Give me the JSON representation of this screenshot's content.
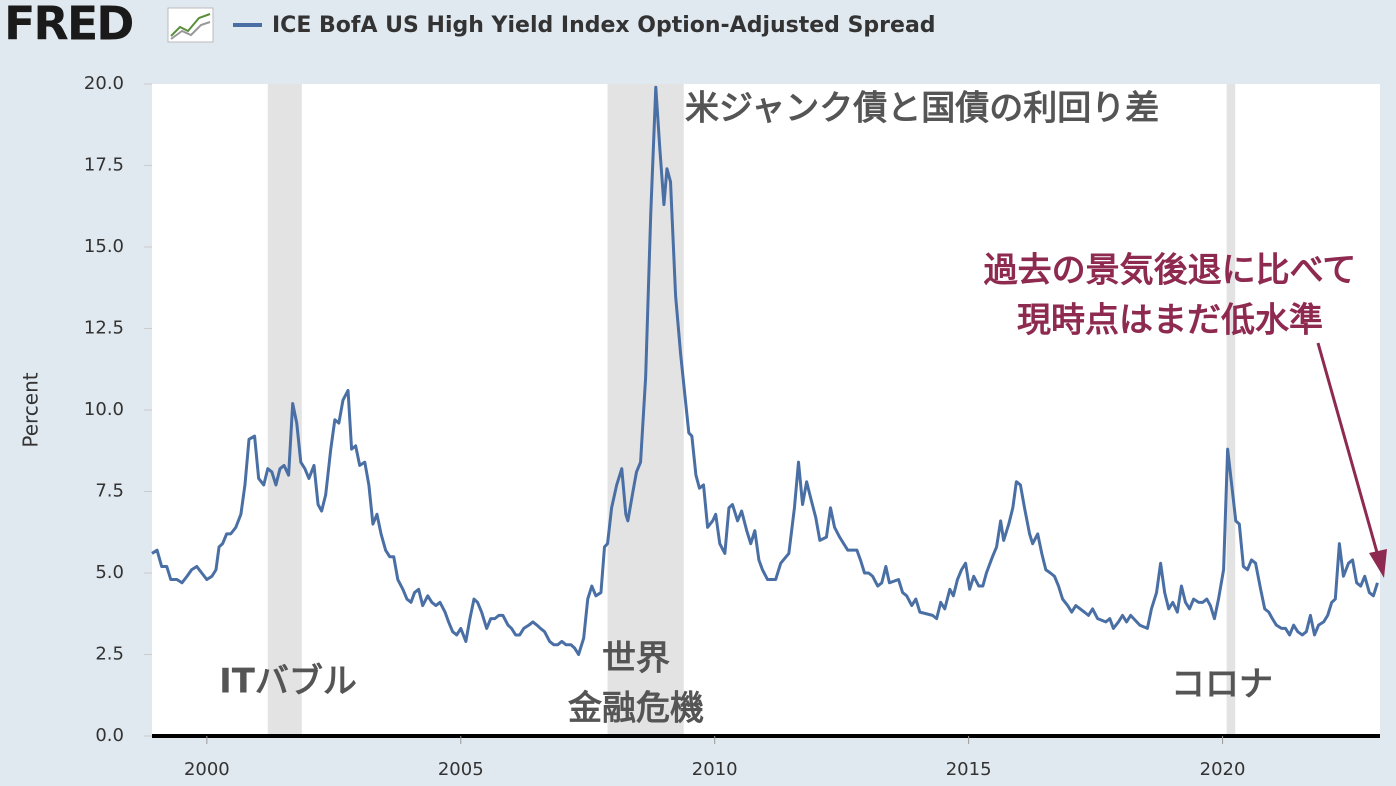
{
  "logo": "FRED",
  "chart_data": {
    "type": "line",
    "title": "ICE BofA US High Yield Index Option-Adjusted Spread",
    "y_label": "Percent",
    "xlim": [
      1998.92,
      2023.1
    ],
    "xticks": [
      2000,
      2005,
      2010,
      2015,
      2020
    ],
    "ylim": [
      0,
      20
    ],
    "yticks": [
      {
        "value": 0,
        "label": "0.0"
      },
      2.5,
      {
        "value": 5,
        "label": "5.0"
      },
      7.5,
      {
        "value": 10,
        "label": "10.0"
      },
      12.5,
      {
        "value": 15,
        "label": "15.0"
      },
      17.5,
      {
        "value": 20,
        "label": "20.0"
      }
    ],
    "grid": false,
    "recession_color": "#e3e3e3",
    "recessions": [
      [
        2001.2,
        2001.87
      ],
      [
        2007.89,
        2009.39
      ],
      [
        2020.08,
        2020.25
      ]
    ],
    "annotations": [
      {
        "text": "米ジャンク債と国債の利回り差"
      },
      {
        "text": "ITバブル"
      },
      {
        "lines": [
          "世界",
          "金融危機"
        ]
      },
      {
        "text": "コロナ"
      },
      {
        "lines": [
          "過去の景気後退に比べて",
          "現時点はまだ低水準"
        ],
        "color": "#8e2a50"
      }
    ],
    "series": [
      {
        "name": "ICE BofA US High Yield Index Option-Adjusted Spread",
        "color": "#4a6fa5",
        "x": [
          1998.92,
          1999.02,
          1999.11,
          1999.21,
          1999.29,
          1999.41,
          1999.51,
          1999.61,
          1999.7,
          1999.8,
          1999.9,
          2000.0,
          2000.1,
          2000.18,
          2000.24,
          2000.31,
          2000.39,
          2000.47,
          2000.57,
          2000.67,
          2000.75,
          2000.83,
          2000.94,
          2001.02,
          2001.12,
          2001.2,
          2001.28,
          2001.36,
          2001.44,
          2001.52,
          2001.61,
          2001.69,
          2001.77,
          2001.85,
          2001.93,
          2002.01,
          2002.11,
          2002.19,
          2002.26,
          2002.34,
          2002.44,
          2002.52,
          2002.6,
          2002.68,
          2002.78,
          2002.85,
          2002.93,
          2003.01,
          2003.11,
          2003.19,
          2003.27,
          2003.35,
          2003.43,
          2003.52,
          2003.6,
          2003.68,
          2003.76,
          2003.86,
          2003.94,
          2004.02,
          2004.09,
          2004.17,
          2004.25,
          2004.35,
          2004.43,
          2004.51,
          2004.59,
          2004.69,
          2004.76,
          2004.84,
          2004.92,
          2005.0,
          2005.1,
          2005.18,
          2005.26,
          2005.33,
          2005.41,
          2005.51,
          2005.59,
          2005.67,
          2005.75,
          2005.83,
          2005.93,
          2006.0,
          2006.08,
          2006.16,
          2006.24,
          2006.34,
          2006.42,
          2006.5,
          2006.57,
          2006.65,
          2006.75,
          2006.83,
          2006.91,
          2006.99,
          2007.07,
          2007.17,
          2007.24,
          2007.32,
          2007.42,
          2007.5,
          2007.58,
          2007.66,
          2007.76,
          2007.83,
          2007.89,
          2007.97,
          2008.07,
          2008.17,
          2008.25,
          2008.29,
          2008.39,
          2008.46,
          2008.54,
          2008.64,
          2008.74,
          2008.84,
          2008.92,
          2009.0,
          2009.06,
          2009.13,
          2009.23,
          2009.33,
          2009.41,
          2009.49,
          2009.55,
          2009.63,
          2009.7,
          2009.78,
          2009.86,
          2009.96,
          2010.02,
          2010.1,
          2010.2,
          2010.28,
          2010.35,
          2010.45,
          2010.53,
          2010.63,
          2010.71,
          2010.79,
          2010.87,
          2010.94,
          2011.04,
          2011.2,
          2011.3,
          2011.46,
          2011.57,
          2011.65,
          2011.73,
          2011.81,
          2011.89,
          2011.99,
          2012.07,
          2012.2,
          2012.28,
          2012.36,
          2012.46,
          2012.54,
          2012.62,
          2012.8,
          2012.87,
          2012.95,
          2013.03,
          2013.11,
          2013.21,
          2013.29,
          2013.37,
          2013.44,
          2013.62,
          2013.7,
          2013.78,
          2013.88,
          2013.96,
          2014.04,
          2014.29,
          2014.37,
          2014.45,
          2014.53,
          2014.63,
          2014.7,
          2014.78,
          2014.86,
          2014.94,
          2015.02,
          2015.1,
          2015.2,
          2015.28,
          2015.35,
          2015.47,
          2015.55,
          2015.63,
          2015.69,
          2015.79,
          2015.87,
          2015.94,
          2016.02,
          2016.1,
          2016.2,
          2016.26,
          2016.36,
          2016.44,
          2016.52,
          2016.61,
          2016.69,
          2016.77,
          2016.85,
          2016.95,
          2017.03,
          2017.11,
          2017.28,
          2017.36,
          2017.44,
          2017.54,
          2017.7,
          2017.78,
          2017.85,
          2017.95,
          2018.03,
          2018.11,
          2018.19,
          2018.37,
          2018.52,
          2018.6,
          2018.7,
          2018.78,
          2018.86,
          2018.94,
          2019.02,
          2019.11,
          2019.19,
          2019.27,
          2019.35,
          2019.43,
          2019.53,
          2019.61,
          2019.69,
          2019.76,
          2019.84,
          2019.92,
          2020.02,
          2020.1,
          2020.18,
          2020.26,
          2020.33,
          2020.41,
          2020.49,
          2020.57,
          2020.65,
          2020.75,
          2020.83,
          2020.91,
          2020.98,
          2021.06,
          2021.16,
          2021.24,
          2021.32,
          2021.4,
          2021.48,
          2021.57,
          2021.65,
          2021.73,
          2021.81,
          2021.89,
          2021.99,
          2022.07,
          2022.15,
          2022.22,
          2022.3,
          2022.38,
          2022.48,
          2022.56,
          2022.64,
          2022.72,
          2022.8,
          2022.89,
          2022.97,
          2023.05
        ],
        "values": [
          5.6,
          5.7,
          5.2,
          5.2,
          4.8,
          4.8,
          4.7,
          4.9,
          5.1,
          5.2,
          5.0,
          4.8,
          4.9,
          5.1,
          5.8,
          5.9,
          6.2,
          6.2,
          6.4,
          6.8,
          7.7,
          9.1,
          9.2,
          7.9,
          7.7,
          8.2,
          8.1,
          7.7,
          8.2,
          8.3,
          8.0,
          10.2,
          9.6,
          8.4,
          8.2,
          7.9,
          8.3,
          7.1,
          6.9,
          7.4,
          8.8,
          9.7,
          9.6,
          10.3,
          10.6,
          8.8,
          8.9,
          8.3,
          8.4,
          7.7,
          6.5,
          6.8,
          6.2,
          5.7,
          5.5,
          5.5,
          4.8,
          4.5,
          4.2,
          4.1,
          4.4,
          4.5,
          4.0,
          4.3,
          4.1,
          4.0,
          4.1,
          3.8,
          3.5,
          3.2,
          3.1,
          3.3,
          2.9,
          3.6,
          4.2,
          4.1,
          3.8,
          3.3,
          3.6,
          3.6,
          3.7,
          3.7,
          3.4,
          3.3,
          3.1,
          3.1,
          3.3,
          3.4,
          3.5,
          3.4,
          3.3,
          3.2,
          2.9,
          2.8,
          2.8,
          2.9,
          2.8,
          2.8,
          2.7,
          2.5,
          3.0,
          4.2,
          4.6,
          4.3,
          4.4,
          5.8,
          5.9,
          7.0,
          7.7,
          8.2,
          6.8,
          6.6,
          7.5,
          8.1,
          8.4,
          11.0,
          16.0,
          19.9,
          18.0,
          16.3,
          17.4,
          17.0,
          13.5,
          11.7,
          10.5,
          9.3,
          9.2,
          8.0,
          7.6,
          7.7,
          6.4,
          6.6,
          6.8,
          5.9,
          5.6,
          7.0,
          7.1,
          6.6,
          6.9,
          6.3,
          5.9,
          6.3,
          5.4,
          5.1,
          4.8,
          4.8,
          5.3,
          5.6,
          7.0,
          8.4,
          7.1,
          7.8,
          7.3,
          6.7,
          6.0,
          6.1,
          7.0,
          6.4,
          6.1,
          5.9,
          5.7,
          5.7,
          5.4,
          5.0,
          5.0,
          4.9,
          4.6,
          4.7,
          5.2,
          4.7,
          4.8,
          4.4,
          4.3,
          4.0,
          4.2,
          3.8,
          3.7,
          3.6,
          4.1,
          3.9,
          4.5,
          4.3,
          4.8,
          5.1,
          5.3,
          4.5,
          4.9,
          4.6,
          4.6,
          5.0,
          5.5,
          5.8,
          6.6,
          6.0,
          6.5,
          7.0,
          7.8,
          7.7,
          7.0,
          6.2,
          5.9,
          6.2,
          5.6,
          5.1,
          5.0,
          4.9,
          4.6,
          4.2,
          4.0,
          3.8,
          4.0,
          3.8,
          3.7,
          3.9,
          3.6,
          3.5,
          3.6,
          3.3,
          3.5,
          3.7,
          3.5,
          3.7,
          3.4,
          3.3,
          3.9,
          4.4,
          5.3,
          4.4,
          3.9,
          4.1,
          3.8,
          4.6,
          4.1,
          3.9,
          4.2,
          4.1,
          4.1,
          4.2,
          4.0,
          3.6,
          4.2,
          5.1,
          8.8,
          7.7,
          6.6,
          6.5,
          5.2,
          5.1,
          5.4,
          5.3,
          4.5,
          3.9,
          3.8,
          3.6,
          3.4,
          3.3,
          3.3,
          3.1,
          3.4,
          3.2,
          3.1,
          3.2,
          3.7,
          3.1,
          3.4,
          3.5,
          3.7,
          4.1,
          4.2,
          5.9,
          4.9,
          5.3,
          5.4,
          4.7,
          4.6,
          4.9,
          4.4,
          4.3,
          4.7
        ]
      }
    ]
  }
}
